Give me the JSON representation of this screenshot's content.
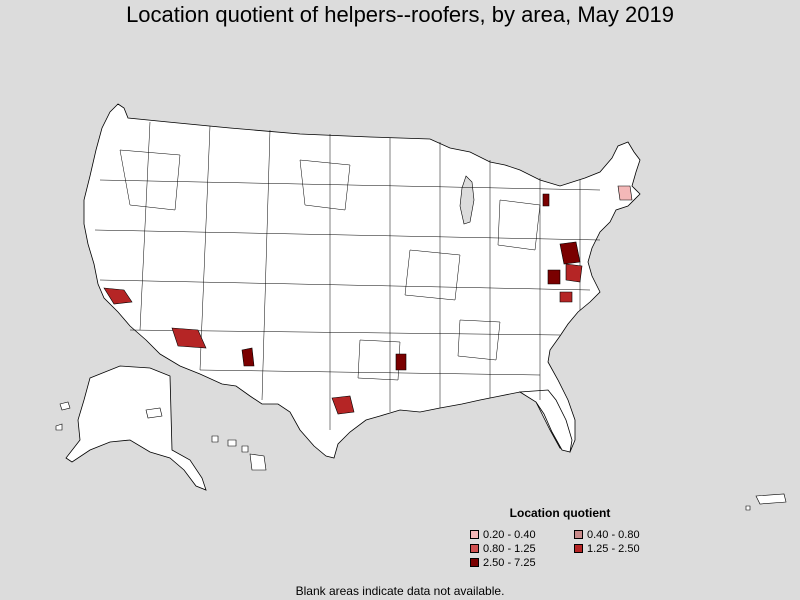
{
  "title": "Location quotient of helpers--roofers, by area, May 2019",
  "legend": {
    "title": "Location quotient",
    "items": [
      {
        "label": "0.20 - 0.40",
        "color": "#f4b8b8"
      },
      {
        "label": "0.40 - 0.80",
        "color": "#c88a8a"
      },
      {
        "label": "0.80 - 1.25",
        "color": "#d05050"
      },
      {
        "label": "1.25 - 2.50",
        "color": "#b52525"
      },
      {
        "label": "2.50 - 7.25",
        "color": "#7a0000"
      }
    ]
  },
  "note": "Blank areas indicate data not available.",
  "colors": {
    "background": "#dcdcdc",
    "land": "#ffffff",
    "border": "#000000"
  }
}
